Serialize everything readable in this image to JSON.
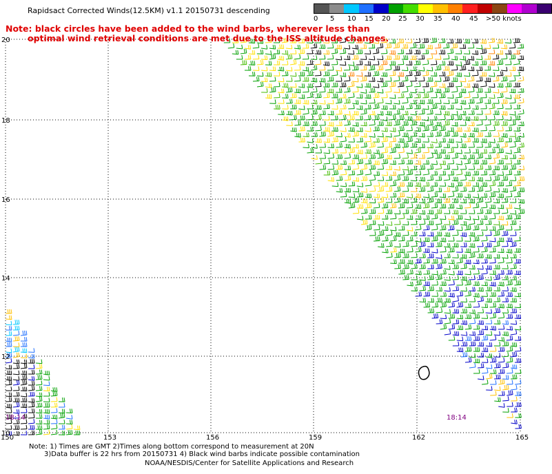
{
  "title": "Rapidsact Corrected Winds(12.5KM) v1.1 20150731 descending",
  "note": {
    "line1": "Note: black circles have been added to the wind barbs, wherever less than",
    "line2": "optimal wind retrieval conditions are met due to the ISS altitude changes."
  },
  "colorbar": {
    "colors": [
      "#555555",
      "#8c8c8c",
      "#00c8ff",
      "#2070ff",
      "#0000c8",
      "#00a000",
      "#44dd00",
      "#ffff00",
      "#ffc000",
      "#ff8000",
      "#ff2020",
      "#c00000",
      "#8b4513",
      "#ff00ff",
      "#b000d0",
      "#3a0070"
    ],
    "labels": [
      "0",
      "5",
      "10",
      "15",
      "20",
      "25",
      "30",
      "35",
      "40",
      "45",
      ">50 knots"
    ]
  },
  "map": {
    "lon_ticks": [
      "150",
      "153",
      "156",
      "159",
      "162",
      "165"
    ],
    "lat_ticks": [
      "20",
      "18",
      "16",
      "14",
      "12",
      "10"
    ],
    "time_labels": [
      "18:14",
      "18:14"
    ]
  },
  "footer": {
    "line1": "Note: 1) Times are GMT 2)Times along bottom correspond to measurement at 20N",
    "line2": "3)Data buffer is 22 hrs from 20150731 4) Black wind barbs indicate possible contamination",
    "line3": "NOAA/NESDIS/Center for Satellite Applications and Research"
  }
}
